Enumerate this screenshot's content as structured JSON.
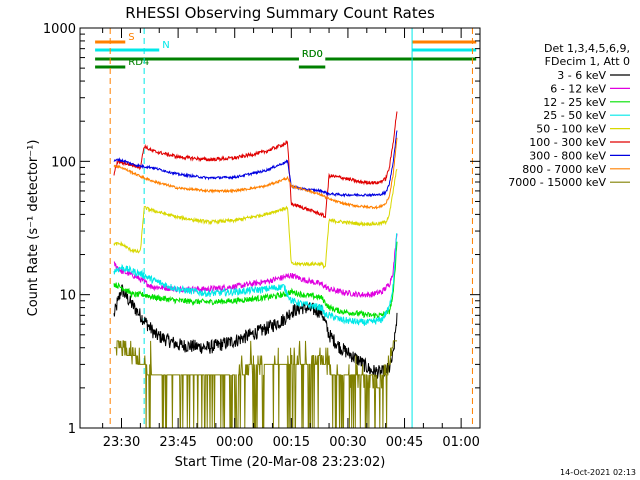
{
  "chart_data": {
    "type": "line",
    "title": "RHESSI Observing Summary Count Rates",
    "xlabel": "Start Time (20-Mar-08 23:23:02)",
    "ylabel": "Count Rate (s⁻¹ detector⁻¹)",
    "y_scale": "log",
    "ylim": [
      1,
      1000
    ],
    "y_ticks": [
      1,
      10,
      100,
      1000
    ],
    "y_tick_labels": [
      "1",
      "10",
      "100",
      "1000"
    ],
    "x_range_minutes": [
      -4,
      102
    ],
    "x_ticks": [
      7,
      22,
      37,
      52,
      67,
      82,
      97
    ],
    "x_tick_labels": [
      "23:30",
      "23:45",
      "00:00",
      "00:15",
      "00:30",
      "00:45",
      "01:00"
    ],
    "timestamp": "14-Oct-2021 02:13",
    "legend": {
      "placement": "right",
      "header": [
        "Det 1,3,4,5,6,9,",
        "FDecim 1, Att 0"
      ],
      "entries": [
        {
          "label": "3 - 6 keV",
          "color": "#000000"
        },
        {
          "label": "6 - 12 keV",
          "color": "#e000e0"
        },
        {
          "label": "12 - 25 keV",
          "color": "#00e000"
        },
        {
          "label": "25 - 50 keV",
          "color": "#00e8e8"
        },
        {
          "label": "50 - 100 keV",
          "color": "#d8d800"
        },
        {
          "label": "100 - 300 keV",
          "color": "#e00000"
        },
        {
          "label": "300 - 800 keV",
          "color": "#0000e0"
        },
        {
          "label": "800 - 7000 keV",
          "color": "#ff8000"
        },
        {
          "label": "7000 - 15000 keV",
          "color": "#808000"
        }
      ]
    },
    "flags": [
      {
        "label": "S",
        "color": "#ff8000",
        "x_start": 0,
        "x_end": 8,
        "y_offset": 0
      },
      {
        "label": "N",
        "color": "#00e8e8",
        "x_start": 0,
        "x_end": 17,
        "y_offset": 1
      },
      {
        "label": "RD0",
        "color": "#008000",
        "x_start": 15,
        "x_end": 54,
        "y_offset": 2
      },
      {
        "label": "RD0",
        "color": "#008000",
        "x_start": 0,
        "x_end": 54,
        "y_offset": 2
      },
      {
        "label": "",
        "color": "#008000",
        "x_start": 54,
        "x_end": 61,
        "y_offset": 3
      },
      {
        "label": "",
        "color": "#008000",
        "x_start": 61,
        "x_end": 101,
        "y_offset": 2
      },
      {
        "label": "RD4",
        "color": "#008000",
        "x_start": 0,
        "x_end": 8,
        "y_offset": 3
      },
      {
        "label": "",
        "color": "#ff8000",
        "x_start": 84,
        "x_end": 101,
        "y_offset": 0
      },
      {
        "label": "",
        "color": "#00e8e8",
        "x_start": 84,
        "x_end": 101,
        "y_offset": 1
      }
    ],
    "vertical_lines": [
      {
        "x": -4,
        "color": "#00e8e8",
        "style": "solid"
      },
      {
        "x": 4,
        "color": "#ff8000",
        "style": "dashed"
      },
      {
        "x": 13,
        "color": "#00e8e8",
        "style": "dashed"
      },
      {
        "x": 84,
        "color": "#00e8e8",
        "style": "solid"
      },
      {
        "x": 100,
        "color": "#ff8000",
        "style": "dashed"
      }
    ],
    "series": [
      {
        "name": "3 - 6 keV",
        "color": "#000000",
        "noise": 0.12,
        "x": [
          5,
          7,
          9,
          12,
          16,
          22,
          30,
          37,
          45,
          50,
          52,
          55,
          60,
          62,
          65,
          70,
          73,
          76,
          78,
          79,
          80
        ],
        "y": [
          7,
          11,
          9,
          7,
          5,
          4.2,
          4.0,
          4.5,
          5.5,
          6.5,
          7.5,
          8,
          7.5,
          5,
          4,
          3.2,
          2.7,
          2.6,
          2.8,
          3.5,
          7
        ]
      },
      {
        "name": "6 - 12 keV",
        "color": "#e000e0",
        "noise": 0.05,
        "x": [
          5,
          7,
          10,
          12,
          15,
          22,
          30,
          37,
          45,
          50,
          52,
          55,
          60,
          62,
          65,
          70,
          73,
          76,
          78,
          79,
          80
        ],
        "y": [
          17,
          15,
          14,
          13,
          11.5,
          11,
          11,
          11.5,
          12.5,
          13.5,
          14,
          13,
          12,
          11,
          10.5,
          10,
          10,
          10.5,
          12,
          15,
          30
        ]
      },
      {
        "name": "12 - 25 keV",
        "color": "#00e000",
        "noise": 0.05,
        "x": [
          5,
          8,
          10,
          13,
          16,
          22,
          30,
          37,
          45,
          50,
          52,
          55,
          60,
          62,
          65,
          70,
          73,
          76,
          78,
          79,
          80
        ],
        "y": [
          12,
          11,
          10,
          10,
          9.5,
          9,
          8.8,
          9,
          9.5,
          10,
          10.5,
          10,
          9.5,
          8,
          7.5,
          7.2,
          7,
          7,
          7.5,
          10,
          25
        ]
      },
      {
        "name": "25 - 50 keV",
        "color": "#00e8e8",
        "noise": 0.06,
        "x": [
          5,
          7,
          10,
          13,
          15,
          18,
          22,
          30,
          37,
          45,
          50,
          52,
          55,
          60,
          61,
          62,
          65,
          70,
          73,
          76,
          78,
          79,
          80
        ],
        "y": [
          15,
          16,
          15,
          14,
          13,
          12,
          11,
          10.2,
          10.5,
          11,
          11.5,
          9,
          8.5,
          8,
          7,
          7,
          6.5,
          6.2,
          6.2,
          6.5,
          8,
          12,
          30
        ]
      },
      {
        "name": "50 - 100 keV",
        "color": "#d8d800",
        "noise": 0.03,
        "x": [
          5,
          7,
          8,
          9,
          11,
          12,
          13,
          15,
          22,
          30,
          37,
          45,
          51,
          52,
          55,
          60,
          61,
          62,
          66,
          70,
          75,
          77,
          78,
          79,
          80
        ],
        "y": [
          24,
          24,
          23,
          22,
          21,
          21,
          45,
          43,
          38,
          35,
          36,
          40,
          45,
          17,
          17,
          17,
          16,
          36,
          35,
          34,
          34,
          35,
          40,
          60,
          90
        ]
      },
      {
        "name": "100 - 300 keV",
        "color": "#e00000",
        "noise": 0.03,
        "x": [
          5,
          6,
          7,
          9,
          11,
          12,
          13,
          15,
          22,
          30,
          37,
          45,
          51,
          52,
          55,
          60,
          61,
          62,
          66,
          70,
          75,
          77,
          78,
          79,
          80
        ],
        "y": [
          80,
          100,
          98,
          95,
          92,
          90,
          130,
          120,
          108,
          103,
          106,
          118,
          138,
          48,
          45,
          40,
          38,
          78,
          75,
          70,
          69,
          74,
          90,
          140,
          240
        ]
      },
      {
        "name": "300 - 800 keV",
        "color": "#0000e0",
        "noise": 0.02,
        "x": [
          5,
          6,
          8,
          10,
          12,
          15,
          22,
          30,
          37,
          45,
          51,
          52,
          55,
          60,
          62,
          66,
          70,
          75,
          77,
          78,
          79,
          80
        ],
        "y": [
          100,
          103,
          100,
          95,
          92,
          90,
          80,
          75,
          76,
          85,
          100,
          65,
          62,
          60,
          57,
          56,
          56,
          56,
          58,
          68,
          100,
          170
        ]
      },
      {
        "name": "800 - 7000 keV",
        "color": "#ff8000",
        "noise": 0.02,
        "x": [
          5,
          7,
          10,
          13,
          16,
          22,
          30,
          37,
          45,
          51,
          52,
          55,
          60,
          62,
          66,
          70,
          75,
          77,
          78,
          79,
          80
        ],
        "y": [
          93,
          90,
          82,
          75,
          70,
          63,
          60,
          60,
          65,
          75,
          65,
          62,
          56,
          52,
          48,
          46,
          45,
          48,
          55,
          80,
          150
        ]
      },
      {
        "name": "7000 - 15000 keV",
        "color": "#808000",
        "noise": 0.0,
        "x": [
          5,
          7,
          10,
          13,
          15,
          22,
          30,
          37,
          45,
          50,
          52,
          55,
          60,
          62,
          65,
          70,
          75,
          77,
          78,
          79,
          80
        ],
        "y": [
          4.5,
          4,
          3.5,
          3,
          2.5,
          2.5,
          2.5,
          2.5,
          3,
          3,
          3.2,
          3.2,
          3.2,
          2.8,
          2.5,
          2.3,
          2.2,
          2.3,
          3,
          5,
          8
        ]
      }
    ]
  }
}
